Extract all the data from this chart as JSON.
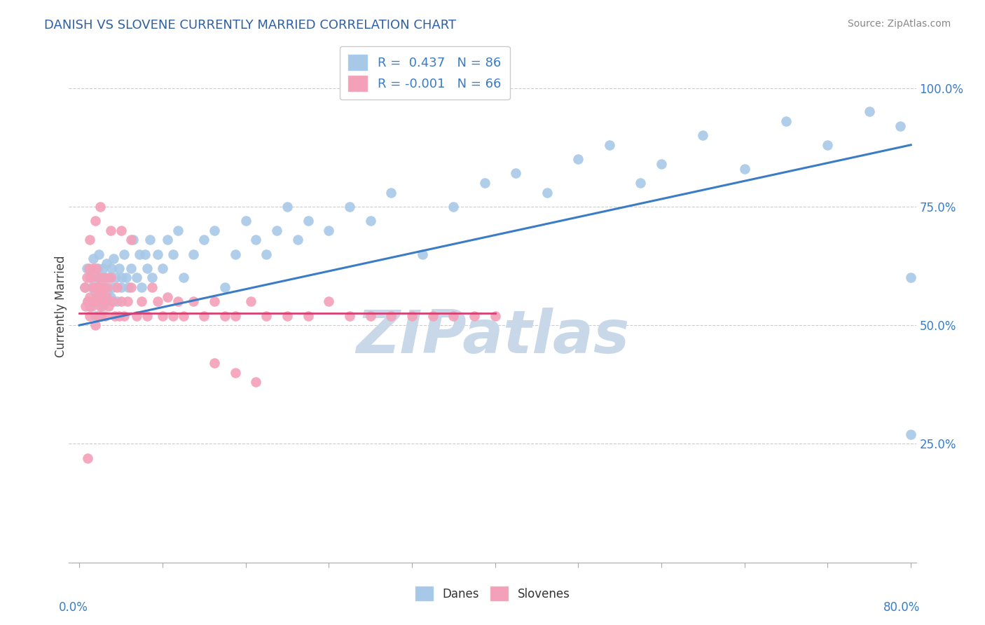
{
  "title": "DANISH VS SLOVENE CURRENTLY MARRIED CORRELATION CHART",
  "source": "Source: ZipAtlas.com",
  "ylabel": "Currently Married",
  "x_min": 0.0,
  "x_max": 0.8,
  "y_min": 0.0,
  "y_max": 1.08,
  "yticks": [
    0.25,
    0.5,
    0.75,
    1.0
  ],
  "ytick_labels": [
    "25.0%",
    "50.0%",
    "75.0%",
    "100.0%"
  ],
  "danes_R": 0.437,
  "danes_N": 86,
  "slovenes_R": -0.001,
  "slovenes_N": 66,
  "danes_color": "#a8c8e8",
  "slovenes_color": "#f4a0b8",
  "trend_danes_color": "#3a7cc5",
  "trend_slovenes_color": "#d94070",
  "title_color": "#3060a0",
  "source_color": "#888888",
  "tick_color": "#3a7cc5",
  "watermark_color": "#c8d8e8",
  "danes_x": [
    0.005,
    0.007,
    0.008,
    0.01,
    0.01,
    0.012,
    0.013,
    0.015,
    0.015,
    0.016,
    0.017,
    0.018,
    0.018,
    0.019,
    0.02,
    0.02,
    0.021,
    0.022,
    0.022,
    0.023,
    0.024,
    0.025,
    0.025,
    0.026,
    0.027,
    0.028,
    0.03,
    0.031,
    0.032,
    0.033,
    0.035,
    0.036,
    0.038,
    0.04,
    0.041,
    0.043,
    0.045,
    0.047,
    0.05,
    0.052,
    0.055,
    0.058,
    0.06,
    0.063,
    0.065,
    0.068,
    0.07,
    0.075,
    0.08,
    0.085,
    0.09,
    0.095,
    0.1,
    0.11,
    0.12,
    0.13,
    0.14,
    0.15,
    0.16,
    0.17,
    0.18,
    0.19,
    0.2,
    0.21,
    0.22,
    0.24,
    0.26,
    0.28,
    0.3,
    0.33,
    0.36,
    0.39,
    0.42,
    0.45,
    0.48,
    0.51,
    0.54,
    0.56,
    0.6,
    0.64,
    0.68,
    0.72,
    0.76,
    0.79,
    0.8,
    0.8
  ],
  "danes_y": [
    0.58,
    0.62,
    0.55,
    0.54,
    0.6,
    0.58,
    0.64,
    0.52,
    0.57,
    0.6,
    0.56,
    0.58,
    0.62,
    0.65,
    0.52,
    0.58,
    0.6,
    0.54,
    0.57,
    0.62,
    0.58,
    0.55,
    0.6,
    0.63,
    0.57,
    0.6,
    0.56,
    0.62,
    0.58,
    0.64,
    0.6,
    0.55,
    0.62,
    0.58,
    0.6,
    0.65,
    0.6,
    0.58,
    0.62,
    0.68,
    0.6,
    0.65,
    0.58,
    0.65,
    0.62,
    0.68,
    0.6,
    0.65,
    0.62,
    0.68,
    0.65,
    0.7,
    0.6,
    0.65,
    0.68,
    0.7,
    0.58,
    0.65,
    0.72,
    0.68,
    0.65,
    0.7,
    0.75,
    0.68,
    0.72,
    0.7,
    0.75,
    0.72,
    0.78,
    0.65,
    0.75,
    0.8,
    0.82,
    0.78,
    0.85,
    0.88,
    0.8,
    0.84,
    0.9,
    0.83,
    0.93,
    0.88,
    0.95,
    0.92,
    0.6,
    0.27
  ],
  "slovenes_x": [
    0.005,
    0.006,
    0.007,
    0.008,
    0.009,
    0.01,
    0.01,
    0.011,
    0.012,
    0.013,
    0.013,
    0.014,
    0.015,
    0.015,
    0.016,
    0.017,
    0.018,
    0.018,
    0.019,
    0.02,
    0.02,
    0.021,
    0.022,
    0.023,
    0.024,
    0.025,
    0.026,
    0.027,
    0.028,
    0.03,
    0.032,
    0.034,
    0.036,
    0.038,
    0.04,
    0.043,
    0.046,
    0.05,
    0.055,
    0.06,
    0.065,
    0.07,
    0.075,
    0.08,
    0.085,
    0.09,
    0.095,
    0.1,
    0.11,
    0.12,
    0.13,
    0.14,
    0.15,
    0.165,
    0.18,
    0.2,
    0.22,
    0.24,
    0.26,
    0.28,
    0.3,
    0.32,
    0.34,
    0.36,
    0.38,
    0.4
  ],
  "slovenes_y": [
    0.58,
    0.54,
    0.6,
    0.55,
    0.62,
    0.52,
    0.56,
    0.6,
    0.54,
    0.58,
    0.62,
    0.55,
    0.5,
    0.58,
    0.62,
    0.56,
    0.52,
    0.58,
    0.6,
    0.54,
    0.57,
    0.52,
    0.58,
    0.55,
    0.6,
    0.52,
    0.56,
    0.58,
    0.54,
    0.6,
    0.55,
    0.52,
    0.58,
    0.52,
    0.55,
    0.52,
    0.55,
    0.58,
    0.52,
    0.55,
    0.52,
    0.58,
    0.55,
    0.52,
    0.56,
    0.52,
    0.55,
    0.52,
    0.55,
    0.52,
    0.55,
    0.52,
    0.52,
    0.55,
    0.52,
    0.52,
    0.52,
    0.55,
    0.52,
    0.52,
    0.52,
    0.52,
    0.52,
    0.52,
    0.52,
    0.52
  ],
  "slovenes_outliers_x": [
    0.008,
    0.01,
    0.015,
    0.02,
    0.03,
    0.04,
    0.05,
    0.13,
    0.15,
    0.17
  ],
  "slovenes_outliers_y": [
    0.22,
    0.68,
    0.72,
    0.75,
    0.7,
    0.7,
    0.68,
    0.42,
    0.4,
    0.38
  ],
  "danes_trend_x0": 0.0,
  "danes_trend_x1": 0.8,
  "danes_trend_y0": 0.5,
  "danes_trend_y1": 0.88,
  "slovenes_trend_x0": 0.0,
  "slovenes_trend_x1": 0.4,
  "slovenes_trend_y0": 0.525,
  "slovenes_trend_y1": 0.525
}
